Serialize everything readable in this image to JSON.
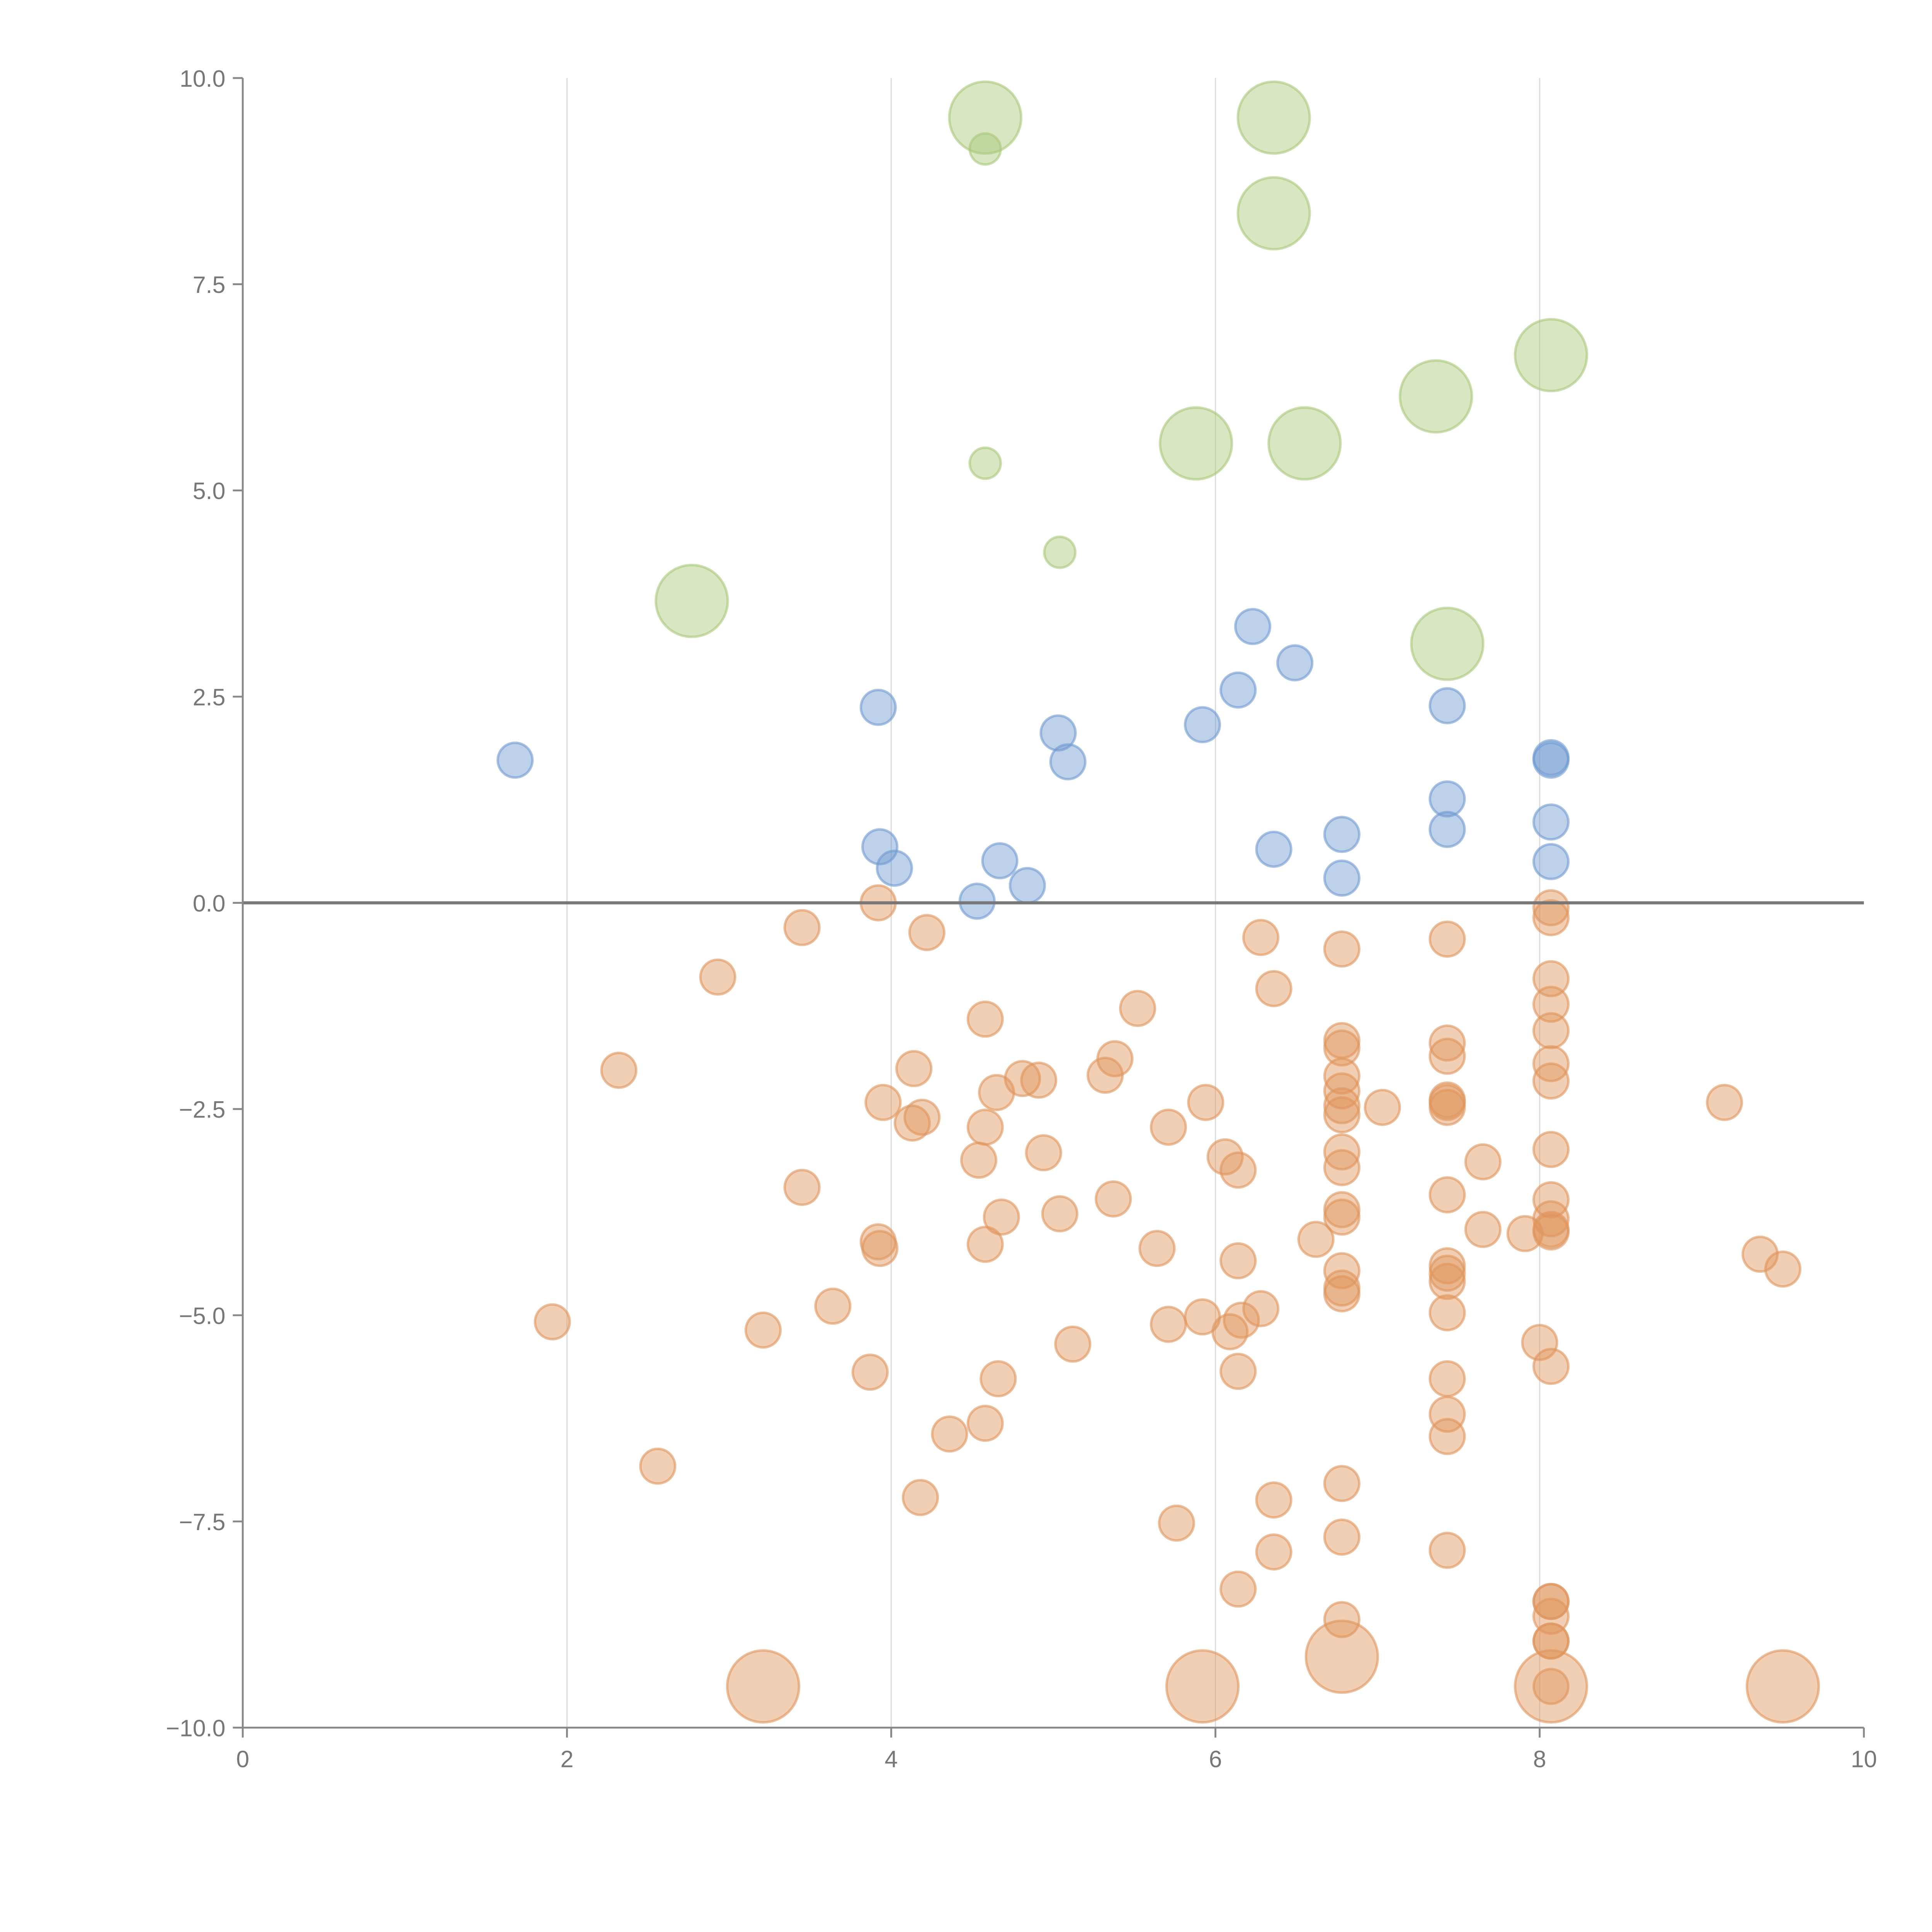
{
  "chart_data": {
    "type": "scatter",
    "title": "",
    "xlabel": "",
    "ylabel": "",
    "xlim": [
      0,
      10
    ],
    "ylim": [
      -10,
      10
    ],
    "x_ticks": [
      "0",
      "2",
      "4",
      "6",
      "8",
      "10"
    ],
    "x_tick_values": [
      0,
      2,
      4,
      6,
      8,
      10
    ],
    "y_ticks": [
      "10.0",
      "7.5",
      "5.0",
      "2.5",
      "0.0",
      "−2.5",
      "−5.0",
      "−7.5",
      "−10.0"
    ],
    "y_tick_values": [
      10,
      7.5,
      5,
      2.5,
      0,
      -2.5,
      -5,
      -7.5,
      -10
    ],
    "grid": "vertical",
    "reference_line_y": 0,
    "point_format": "[x, y, size]",
    "series": [
      {
        "name": "green",
        "color": "#a8c878",
        "points": [
          [
            4.58,
            9.52,
            4
          ],
          [
            4.58,
            9.14,
            1
          ],
          [
            6.36,
            9.52,
            4
          ],
          [
            6.36,
            8.36,
            4
          ],
          [
            8.07,
            6.64,
            4
          ],
          [
            7.36,
            6.14,
            4
          ],
          [
            5.88,
            5.57,
            4
          ],
          [
            6.55,
            5.57,
            4
          ],
          [
            4.58,
            5.33,
            1
          ],
          [
            5.04,
            4.25,
            1
          ],
          [
            2.77,
            3.66,
            4
          ],
          [
            7.43,
            3.14,
            4
          ]
        ]
      },
      {
        "name": "blue",
        "color": "#6e9ad0",
        "points": [
          [
            1.68,
            1.73,
            2
          ],
          [
            3.92,
            2.37,
            2
          ],
          [
            3.93,
            0.68,
            2
          ],
          [
            4.02,
            0.42,
            2
          ],
          [
            4.53,
            0.02,
            2
          ],
          [
            4.67,
            0.51,
            2
          ],
          [
            4.84,
            0.21,
            2
          ],
          [
            5.03,
            2.06,
            2
          ],
          [
            5.09,
            1.71,
            2
          ],
          [
            5.92,
            2.16,
            2
          ],
          [
            6.14,
            2.58,
            2
          ],
          [
            6.23,
            3.35,
            2
          ],
          [
            6.49,
            2.91,
            2
          ],
          [
            6.36,
            0.65,
            2
          ],
          [
            6.78,
            0.83,
            2
          ],
          [
            6.78,
            0.3,
            2
          ],
          [
            7.43,
            2.39,
            2
          ],
          [
            7.43,
            1.26,
            2
          ],
          [
            7.43,
            0.89,
            2
          ],
          [
            8.07,
            1.76,
            2
          ],
          [
            8.07,
            1.73,
            2
          ],
          [
            8.07,
            0.98,
            2
          ],
          [
            8.07,
            0.5,
            2
          ]
        ]
      },
      {
        "name": "orange",
        "color": "#e0955a",
        "points": [
          [
            3.92,
            0.0,
            2
          ],
          [
            3.45,
            -0.3,
            2
          ],
          [
            4.22,
            -0.36,
            2
          ],
          [
            2.93,
            -0.9,
            2
          ],
          [
            2.32,
            -2.03,
            2
          ],
          [
            4.58,
            -1.41,
            2
          ],
          [
            4.14,
            -2.01,
            2
          ],
          [
            5.52,
            -1.28,
            2
          ],
          [
            5.38,
            -1.89,
            2
          ],
          [
            5.32,
            -2.09,
            2
          ],
          [
            4.81,
            -2.13,
            2
          ],
          [
            4.91,
            -2.15,
            2
          ],
          [
            4.65,
            -2.3,
            2
          ],
          [
            3.95,
            -2.42,
            2
          ],
          [
            4.19,
            -2.6,
            2
          ],
          [
            4.13,
            -2.67,
            2
          ],
          [
            4.58,
            -2.72,
            2
          ],
          [
            4.94,
            -3.03,
            2
          ],
          [
            4.54,
            -3.12,
            2
          ],
          [
            5.71,
            -2.72,
            2
          ],
          [
            5.94,
            -2.42,
            2
          ],
          [
            6.28,
            -0.42,
            2
          ],
          [
            6.36,
            -1.04,
            2
          ],
          [
            6.06,
            -3.08,
            2
          ],
          [
            6.14,
            -3.24,
            2
          ],
          [
            3.45,
            -3.45,
            2
          ],
          [
            5.37,
            -3.59,
            2
          ],
          [
            4.68,
            -3.81,
            2
          ],
          [
            5.04,
            -3.77,
            2
          ],
          [
            3.92,
            -4.11,
            2
          ],
          [
            3.93,
            -4.19,
            2
          ],
          [
            4.58,
            -4.14,
            2
          ],
          [
            5.64,
            -4.19,
            2
          ],
          [
            6.14,
            -4.34,
            2
          ],
          [
            6.62,
            -4.08,
            2
          ],
          [
            1.91,
            -5.08,
            2
          ],
          [
            3.21,
            -5.18,
            2
          ],
          [
            3.64,
            -4.89,
            2
          ],
          [
            5.71,
            -5.11,
            2
          ],
          [
            5.92,
            -5.02,
            2
          ],
          [
            6.09,
            -5.2,
            2
          ],
          [
            6.16,
            -5.06,
            2
          ],
          [
            6.28,
            -4.92,
            2
          ],
          [
            5.12,
            -5.35,
            2
          ],
          [
            3.87,
            -5.69,
            2
          ],
          [
            4.66,
            -5.77,
            2
          ],
          [
            6.14,
            -5.68,
            2
          ],
          [
            4.58,
            -6.31,
            2
          ],
          [
            4.36,
            -6.44,
            2
          ],
          [
            2.56,
            -6.83,
            2
          ],
          [
            4.18,
            -7.21,
            2
          ],
          [
            5.76,
            -7.52,
            2
          ],
          [
            6.36,
            -7.24,
            2
          ],
          [
            6.36,
            -7.87,
            2
          ],
          [
            6.14,
            -8.32,
            2
          ],
          [
            6.78,
            -0.56,
            2
          ],
          [
            6.78,
            -1.67,
            2
          ],
          [
            6.78,
            -1.76,
            2
          ],
          [
            6.78,
            -2.1,
            2
          ],
          [
            6.78,
            -2.28,
            2
          ],
          [
            6.78,
            -2.46,
            2
          ],
          [
            6.78,
            -2.57,
            2
          ],
          [
            6.78,
            -3.02,
            2
          ],
          [
            6.78,
            -3.21,
            2
          ],
          [
            6.78,
            -3.72,
            2
          ],
          [
            6.78,
            -3.81,
            2
          ],
          [
            6.78,
            -4.46,
            2
          ],
          [
            6.78,
            -4.67,
            2
          ],
          [
            6.78,
            -4.74,
            2
          ],
          [
            6.78,
            -7.04,
            2
          ],
          [
            6.78,
            -7.69,
            2
          ],
          [
            6.78,
            -8.69,
            2
          ],
          [
            7.03,
            -2.48,
            2
          ],
          [
            7.43,
            -0.44,
            2
          ],
          [
            7.43,
            -1.7,
            2
          ],
          [
            7.43,
            -1.86,
            2
          ],
          [
            7.43,
            -2.39,
            2
          ],
          [
            7.43,
            -2.42,
            2
          ],
          [
            7.43,
            -2.48,
            2
          ],
          [
            7.43,
            -3.54,
            2
          ],
          [
            7.43,
            -4.4,
            2
          ],
          [
            7.43,
            -4.49,
            2
          ],
          [
            7.43,
            -4.59,
            2
          ],
          [
            7.43,
            -4.97,
            2
          ],
          [
            7.43,
            -5.77,
            2
          ],
          [
            7.43,
            -6.2,
            2
          ],
          [
            7.43,
            -6.47,
            2
          ],
          [
            7.43,
            -7.85,
            2
          ],
          [
            7.65,
            -3.14,
            2
          ],
          [
            7.65,
            -3.96,
            2
          ],
          [
            7.91,
            -4.01,
            2
          ],
          [
            8.0,
            -5.33,
            2
          ],
          [
            8.07,
            -0.06,
            2
          ],
          [
            8.07,
            -0.18,
            2
          ],
          [
            8.07,
            -0.92,
            2
          ],
          [
            8.07,
            -1.23,
            2
          ],
          [
            8.07,
            -1.55,
            2
          ],
          [
            8.07,
            -1.95,
            2
          ],
          [
            8.07,
            -2.16,
            2
          ],
          [
            8.07,
            -2.99,
            2
          ],
          [
            8.07,
            -3.6,
            2
          ],
          [
            8.07,
            -3.83,
            2
          ],
          [
            8.07,
            -3.96,
            2
          ],
          [
            8.07,
            -3.99,
            2
          ],
          [
            8.07,
            -5.62,
            2
          ],
          [
            8.07,
            -8.47,
            2
          ],
          [
            8.07,
            -8.47,
            2
          ],
          [
            8.07,
            -8.65,
            2
          ],
          [
            8.07,
            -8.95,
            2
          ],
          [
            8.07,
            -8.95,
            2
          ],
          [
            8.07,
            -9.5,
            2
          ],
          [
            9.14,
            -2.42,
            2
          ],
          [
            9.36,
            -4.26,
            2
          ],
          [
            9.5,
            -4.44,
            2
          ],
          [
            3.21,
            -9.5,
            4
          ],
          [
            5.92,
            -9.5,
            4
          ],
          [
            6.78,
            -9.14,
            4
          ],
          [
            8.07,
            -9.5,
            4
          ],
          [
            9.5,
            -9.5,
            4
          ]
        ]
      }
    ]
  }
}
